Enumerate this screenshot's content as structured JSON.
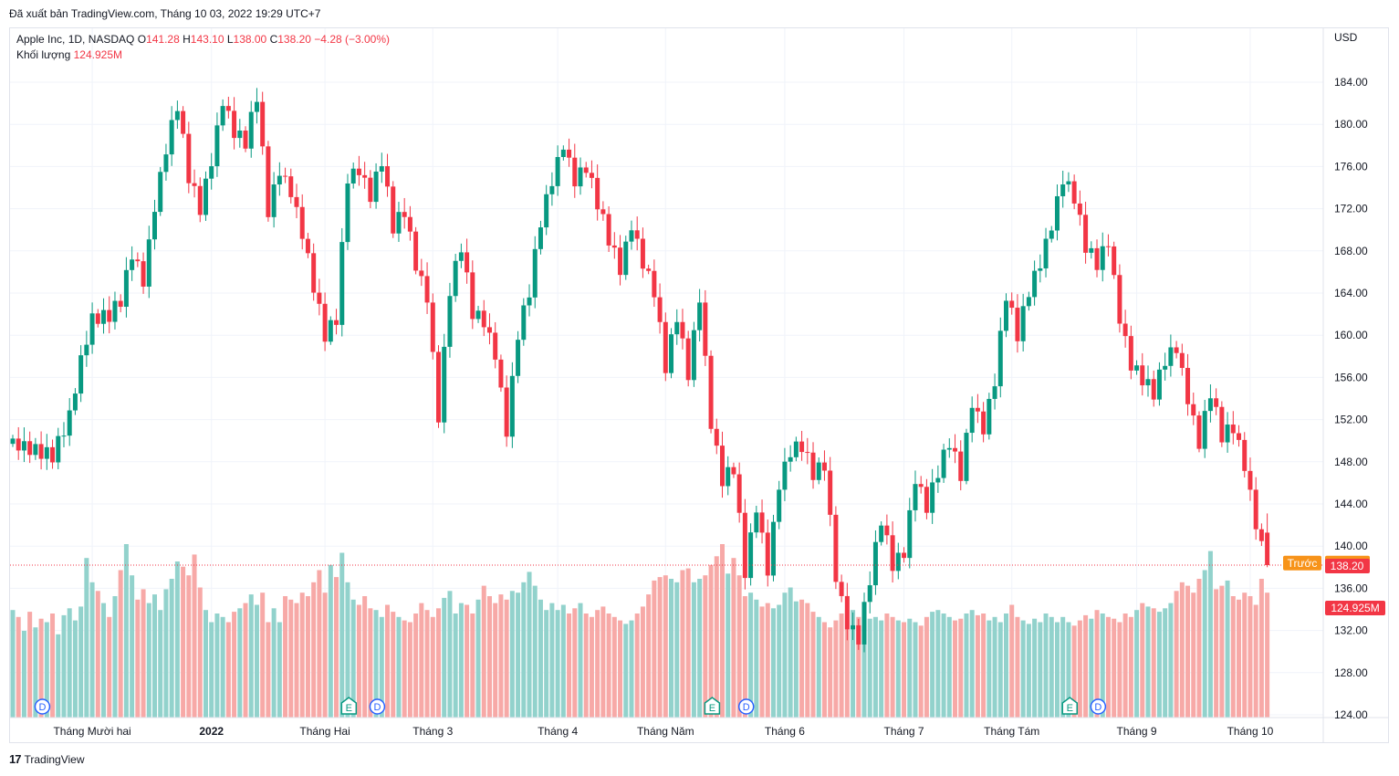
{
  "published": "Đã xuất bản TradingView.com, Tháng 10 03, 2022 19:29 UTC+7",
  "legend": {
    "symbol": "Apple Inc, 1D, NASDAQ",
    "o_label": "O",
    "o": "141.28",
    "h_label": "H",
    "h": "143.10",
    "l_label": "L",
    "l": "138.00",
    "c_label": "C",
    "c": "138.20",
    "change": "−4.28 (−3.00%)",
    "volume_label": "Khối lượng",
    "volume": "124.925M"
  },
  "footer": {
    "logo": "17",
    "brand": "TradingView"
  },
  "colors": {
    "up": "#089981",
    "down": "#f23645",
    "vol_up": "#92d2cc",
    "vol_down": "#f7a9a7",
    "prev": "#f7931a"
  },
  "chart_data": {
    "type": "candlestick",
    "currency": "USD",
    "y_ticks": [
      124,
      128,
      132,
      136,
      140,
      144,
      148,
      152,
      156,
      160,
      164,
      168,
      172,
      176,
      180,
      184
    ],
    "y_tick_labels": [
      "124.00",
      "128.00",
      "132.00",
      "136.00",
      "140.00",
      "144.00",
      "148.00",
      "152.00",
      "156.00",
      "160.00",
      "164.00",
      "168.00",
      "172.00",
      "176.00",
      "180.00",
      "184.00"
    ],
    "ylim": [
      124,
      190
    ],
    "x_labels": [
      {
        "label": "Tháng Mười hai",
        "index": 14,
        "bold": false
      },
      {
        "label": "2022",
        "index": 35,
        "bold": true
      },
      {
        "label": "Tháng Hai",
        "index": 55,
        "bold": false
      },
      {
        "label": "Tháng 3",
        "index": 74,
        "bold": false
      },
      {
        "label": "Tháng 4",
        "index": 96,
        "bold": false
      },
      {
        "label": "Tháng Năm",
        "index": 115,
        "bold": false
      },
      {
        "label": "Tháng 6",
        "index": 136,
        "bold": false
      },
      {
        "label": "Tháng 7",
        "index": 157,
        "bold": false
      },
      {
        "label": "Tháng Tám",
        "index": 176,
        "bold": false
      },
      {
        "label": "Tháng 9",
        "index": 198,
        "bold": false
      },
      {
        "label": "Tháng 10",
        "index": 218,
        "bold": false
      }
    ],
    "keypoints": [
      [
        0,
        150.2
      ],
      [
        5,
        149.0
      ],
      [
        7,
        148.5
      ],
      [
        10,
        152.0
      ],
      [
        12,
        157.2
      ],
      [
        14,
        161.2
      ],
      [
        17,
        161.8
      ],
      [
        19,
        163.4
      ],
      [
        21,
        168.0
      ],
      [
        23,
        165.5
      ],
      [
        25,
        172.6
      ],
      [
        27,
        178.0
      ],
      [
        29,
        182.0
      ],
      [
        31,
        175.0
      ],
      [
        33,
        171.8
      ],
      [
        35,
        176.2
      ],
      [
        37,
        181.8
      ],
      [
        39,
        179.0
      ],
      [
        41,
        178.2
      ],
      [
        43,
        182.8
      ],
      [
        45,
        172.0
      ],
      [
        47,
        176.0
      ],
      [
        49,
        174.0
      ],
      [
        51,
        170.0
      ],
      [
        53,
        164.8
      ],
      [
        55,
        160.0
      ],
      [
        57,
        161.4
      ],
      [
        59,
        174.6
      ],
      [
        61,
        175.2
      ],
      [
        63,
        172.9
      ],
      [
        65,
        176.5
      ],
      [
        67,
        170.3
      ],
      [
        69,
        172.0
      ],
      [
        71,
        167.0
      ],
      [
        73,
        164.0
      ],
      [
        75,
        152.6
      ],
      [
        77,
        164.5
      ],
      [
        79,
        168.5
      ],
      [
        81,
        162.0
      ],
      [
        83,
        161.0
      ],
      [
        85,
        157.7
      ],
      [
        87,
        150.6
      ],
      [
        89,
        160.0
      ],
      [
        91,
        164.2
      ],
      [
        93,
        171.0
      ],
      [
        95,
        175.0
      ],
      [
        97,
        178.5
      ],
      [
        99,
        175.0
      ],
      [
        101,
        176.2
      ],
      [
        103,
        172.6
      ],
      [
        105,
        169.0
      ],
      [
        107,
        166.0
      ],
      [
        109,
        170.0
      ],
      [
        111,
        166.5
      ],
      [
        113,
        164.0
      ],
      [
        115,
        157.0
      ],
      [
        117,
        162.0
      ],
      [
        119,
        156.6
      ],
      [
        121,
        164.0
      ],
      [
        123,
        152.0
      ],
      [
        125,
        146.5
      ],
      [
        127,
        147.5
      ],
      [
        129,
        137.5
      ],
      [
        131,
        143.5
      ],
      [
        133,
        137.3
      ],
      [
        135,
        145.5
      ],
      [
        137,
        148.8
      ],
      [
        139,
        149.5
      ],
      [
        141,
        147.0
      ],
      [
        143,
        148.0
      ],
      [
        145,
        137.5
      ],
      [
        147,
        133.0
      ],
      [
        149,
        131.5
      ],
      [
        151,
        137.0
      ],
      [
        153,
        142.5
      ],
      [
        155,
        138.0
      ],
      [
        157,
        139.0
      ],
      [
        159,
        146.0
      ],
      [
        161,
        143.5
      ],
      [
        163,
        147.0
      ],
      [
        165,
        150.0
      ],
      [
        167,
        147.0
      ],
      [
        169,
        154.0
      ],
      [
        171,
        151.5
      ],
      [
        173,
        156.0
      ],
      [
        175,
        164.0
      ],
      [
        177,
        160.0
      ],
      [
        179,
        164.0
      ],
      [
        181,
        166.5
      ],
      [
        183,
        170.0
      ],
      [
        185,
        174.6
      ],
      [
        187,
        173.0
      ],
      [
        189,
        168.5
      ],
      [
        191,
        167.0
      ],
      [
        193,
        169.3
      ],
      [
        195,
        162.0
      ],
      [
        197,
        157.5
      ],
      [
        199,
        156.0
      ],
      [
        201,
        154.5
      ],
      [
        203,
        157.5
      ],
      [
        205,
        158.5
      ],
      [
        207,
        153.5
      ],
      [
        209,
        149.5
      ],
      [
        211,
        154.5
      ],
      [
        213,
        150.5
      ],
      [
        215,
        151.5
      ],
      [
        217,
        148.0
      ],
      [
        219,
        142.5
      ],
      [
        221,
        138.2
      ]
    ],
    "last": {
      "o": 141.28,
      "h": 143.1,
      "l": 138.0,
      "c": 138.2
    },
    "prev_close": {
      "label": "Trước",
      "value": 138.39,
      "value_label": "138.39"
    },
    "last_label": "138.20",
    "volume_label": "124.925M",
    "volume_ratio": [
      0.62,
      0.58,
      0.5,
      0.61,
      0.52,
      0.57,
      0.55,
      0.6,
      0.48,
      0.59,
      0.63,
      0.56,
      0.64,
      0.92,
      0.78,
      0.73,
      0.66,
      0.58,
      0.7,
      0.85,
      1.0,
      0.82,
      0.68,
      0.74,
      0.66,
      0.71,
      0.62,
      0.74,
      0.8,
      0.9,
      0.87,
      0.82,
      0.94,
      0.75,
      0.62,
      0.55,
      0.6,
      0.58,
      0.55,
      0.61,
      0.63,
      0.66,
      0.71,
      0.65,
      0.72,
      0.55,
      0.63,
      0.55,
      0.7,
      0.68,
      0.66,
      0.72,
      0.7,
      0.78,
      0.85,
      0.72,
      0.88,
      0.81,
      0.95,
      0.78,
      0.68,
      0.65,
      0.7,
      0.63,
      0.62,
      0.58,
      0.65,
      0.61,
      0.58,
      0.56,
      0.55,
      0.6,
      0.66,
      0.62,
      0.58,
      0.63,
      0.69,
      0.73,
      0.6,
      0.66,
      0.65,
      0.6,
      0.68,
      0.76,
      0.7,
      0.66,
      0.71,
      0.68,
      0.73,
      0.72,
      0.78,
      0.84,
      0.76,
      0.68,
      0.62,
      0.66,
      0.62,
      0.65,
      0.6,
      0.63,
      0.66,
      0.6,
      0.58,
      0.62,
      0.64,
      0.6,
      0.58,
      0.56,
      0.54,
      0.56,
      0.6,
      0.64,
      0.71,
      0.79,
      0.81,
      0.82,
      0.8,
      0.78,
      0.85,
      0.86,
      0.78,
      0.8,
      0.82,
      0.88,
      0.93,
      1.0,
      0.83,
      0.92,
      0.82,
      0.7,
      0.72,
      0.68,
      0.64,
      0.66,
      0.63,
      0.65,
      0.72,
      0.75,
      0.67,
      0.68,
      0.66,
      0.61,
      0.58,
      0.55,
      0.52,
      0.56,
      0.6,
      0.62,
      0.62,
      0.58,
      0.6,
      0.57,
      0.58,
      0.56,
      0.6,
      0.58,
      0.56,
      0.55,
      0.57,
      0.55,
      0.53,
      0.58,
      0.61,
      0.62,
      0.6,
      0.58,
      0.56,
      0.57,
      0.6,
      0.62,
      0.59,
      0.6,
      0.56,
      0.58,
      0.55,
      0.6,
      0.65,
      0.58,
      0.56,
      0.54,
      0.57,
      0.55,
      0.6,
      0.58,
      0.55,
      0.58,
      0.55,
      0.53,
      0.56,
      0.59,
      0.57,
      0.62,
      0.6,
      0.58,
      0.57,
      0.55,
      0.6,
      0.58,
      0.62,
      0.66,
      0.64,
      0.63,
      0.61,
      0.63,
      0.66,
      0.73,
      0.78,
      0.76,
      0.72,
      0.8,
      0.85,
      0.96,
      0.74,
      0.76,
      0.79,
      0.7,
      0.68,
      0.72,
      0.7,
      0.65,
      0.8,
      0.72,
      0.7,
      0.79,
      0.82
    ],
    "events": [
      {
        "label": "D",
        "index": 2
      },
      {
        "label": "E",
        "index": 56
      },
      {
        "label": "D",
        "index": 61
      },
      {
        "label": "E",
        "index": 120
      },
      {
        "label": "D",
        "index": 126
      },
      {
        "label": "E",
        "index": 183
      },
      {
        "label": "D",
        "index": 188
      }
    ]
  }
}
